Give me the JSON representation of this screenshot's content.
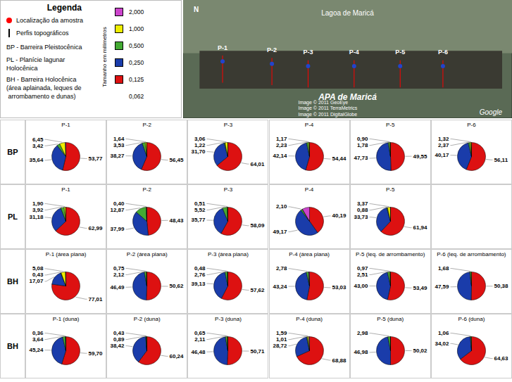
{
  "chart_data": [
    {
      "type": "map",
      "categories": [
        "P-1",
        "P-2",
        "P-3",
        "P-4",
        "P-5",
        "P-6"
      ],
      "annotations": [
        "Lagoa de Maricá",
        "APA de Maricá",
        "N",
        "Image © 2011 GeoEye\nImage © 2011 TerraMetrics",
        "Image © 2011 DigitalGlobe",
        "Google"
      ]
    },
    {
      "type": "legend",
      "title": "Legenda",
      "annotations": [
        "Localização da amostra",
        "Perfis topográficos",
        "BP - Barreira Pleistocênica",
        "PL - Planície lagunar\nHolocênica",
        "BH - Barreira Holocênica\n(área aplainada, leques de\n arrombamento e dunas)"
      ],
      "ylabel": "Tamanho em milímetros",
      "categories": [
        "2,000",
        "1,000",
        "0,500",
        "0,250",
        "0,125",
        "0,062"
      ],
      "colors": [
        "#cc44cc",
        "#eeee00",
        "#44aa33",
        "#1a3caa",
        "#dd1111",
        null
      ]
    },
    {
      "type": "pie",
      "ylabel": "BP",
      "title": "P-1",
      "data_labels": true,
      "values": [
        53.77,
        35.64,
        3.42,
        6.45,
        0.72
      ],
      "value_labels": [
        "53,77",
        "35,64",
        "3,42",
        "6,45",
        null
      ],
      "colors": [
        "#dd1111",
        "#1a3caa",
        "#44aa33",
        "#eeee00",
        "#cc44cc"
      ]
    },
    {
      "type": "pie",
      "title": "P-2",
      "data_labels": true,
      "values": [
        56.45,
        38.27,
        3.53,
        1.64,
        0.11
      ],
      "value_labels": [
        "56,45",
        "38,27",
        "3,53",
        "1,64",
        null
      ],
      "colors": [
        "#dd1111",
        "#1a3caa",
        "#44aa33",
        "#eeee00",
        "#cc44cc"
      ]
    },
    {
      "type": "pie",
      "title": "P-3",
      "data_labels": true,
      "values": [
        64.01,
        31.7,
        1.22,
        3.06,
        0.01
      ],
      "value_labels": [
        "64,01",
        "31,70",
        "1,22",
        "3,06",
        null
      ],
      "colors": [
        "#dd1111",
        "#1a3caa",
        "#44aa33",
        "#eeee00",
        "#cc44cc"
      ]
    },
    {
      "type": "pie",
      "title": "P-4",
      "data_labels": true,
      "values": [
        54.44,
        42.14,
        2.23,
        1.17,
        0.02
      ],
      "value_labels": [
        "54,44",
        "42,14",
        "2,23",
        "1,17",
        null
      ],
      "colors": [
        "#dd1111",
        "#1a3caa",
        "#44aa33",
        "#eeee00",
        "#cc44cc"
      ]
    },
    {
      "type": "pie",
      "title": "P-5",
      "data_labels": true,
      "values": [
        49.55,
        47.73,
        1.78,
        0.9,
        0.04
      ],
      "value_labels": [
        "49,55",
        "47,73",
        "1,78",
        "0,90",
        null
      ],
      "colors": [
        "#dd1111",
        "#1a3caa",
        "#44aa33",
        "#eeee00",
        "#cc44cc"
      ]
    },
    {
      "type": "pie",
      "title": "P-6",
      "data_labels": true,
      "values": [
        56.11,
        40.17,
        2.37,
        1.32,
        0.03
      ],
      "value_labels": [
        "56,11",
        "40,17",
        "2,37",
        "1,32",
        null
      ],
      "colors": [
        "#dd1111",
        "#1a3caa",
        "#44aa33",
        "#eeee00",
        "#cc44cc"
      ]
    },
    {
      "type": "pie",
      "ylabel": "PL",
      "title": "P-1",
      "data_labels": true,
      "values": [
        62.99,
        31.18,
        3.92,
        1.9,
        0.01
      ],
      "value_labels": [
        "62,99",
        "31,18",
        "3,92",
        "1,90",
        null
      ],
      "colors": [
        "#dd1111",
        "#1a3caa",
        "#44aa33",
        "#eeee00",
        "#cc44cc"
      ]
    },
    {
      "type": "pie",
      "title": "P-2",
      "data_labels": true,
      "values": [
        48.43,
        37.99,
        12.87,
        0.4,
        0.31
      ],
      "value_labels": [
        "48,43",
        "37,99",
        "12,87",
        "0,40",
        null
      ],
      "colors": [
        "#dd1111",
        "#1a3caa",
        "#44aa33",
        "#eeee00",
        "#cc44cc"
      ]
    },
    {
      "type": "pie",
      "title": "P-3",
      "data_labels": true,
      "values": [
        58.09,
        35.77,
        5.52,
        0.51,
        0.11
      ],
      "value_labels": [
        "58,09",
        "35,77",
        "5,52",
        "0,51",
        null
      ],
      "colors": [
        "#dd1111",
        "#1a3caa",
        "#44aa33",
        "#eeee00",
        "#cc44cc"
      ]
    },
    {
      "type": "pie",
      "title": "P-4",
      "data_labels": true,
      "values": [
        40.19,
        49.17,
        2.1,
        0.04,
        8.5
      ],
      "value_labels": [
        "40,19",
        "49,17",
        "2,10",
        null,
        null
      ],
      "colors": [
        "#dd1111",
        "#1a3caa",
        "#44aa33",
        "#eeee00",
        "#cc44cc"
      ]
    },
    {
      "type": "pie",
      "title": "P-5",
      "data_labels": true,
      "values": [
        61.94,
        33.73,
        0.88,
        3.37,
        0.08
      ],
      "value_labels": [
        "61,94",
        "33,73",
        "0,88",
        "3,37",
        null
      ],
      "colors": [
        "#dd1111",
        "#1a3caa",
        "#44aa33",
        "#eeee00",
        "#cc44cc"
      ]
    },
    {
      "type": "pie",
      "ylabel": "BH",
      "title": "P-1 (área plana)",
      "data_labels": true,
      "values": [
        77.01,
        17.07,
        0.43,
        5.08,
        0.41
      ],
      "value_labels": [
        "77,01",
        "17,07",
        "0,43",
        "5,08",
        null
      ],
      "colors": [
        "#dd1111",
        "#1a3caa",
        "#44aa33",
        "#eeee00",
        "#cc44cc"
      ]
    },
    {
      "type": "pie",
      "title": "P-2 (área plana)",
      "data_labels": true,
      "values": [
        50.62,
        46.49,
        2.12,
        0.75,
        0.02
      ],
      "value_labels": [
        "50,62",
        "46,49",
        "2,12",
        "0,75",
        null
      ],
      "colors": [
        "#dd1111",
        "#1a3caa",
        "#44aa33",
        "#eeee00",
        "#cc44cc"
      ]
    },
    {
      "type": "pie",
      "title": "P-3 (área plana)",
      "data_labels": true,
      "values": [
        57.62,
        39.13,
        2.76,
        0.48,
        0.01
      ],
      "value_labels": [
        "57,62",
        "39,13",
        "2,76",
        "0,48",
        null
      ],
      "colors": [
        "#dd1111",
        "#1a3caa",
        "#44aa33",
        "#eeee00",
        "#cc44cc"
      ]
    },
    {
      "type": "pie",
      "title": "P-4 (área plana)",
      "data_labels": true,
      "values": [
        53.03,
        43.24,
        2.78,
        0.11,
        0.84
      ],
      "value_labels": [
        "53,03",
        "43,24",
        "2,78",
        null,
        null
      ],
      "colors": [
        "#dd1111",
        "#1a3caa",
        "#44aa33",
        "#eeee00",
        "#cc44cc"
      ]
    },
    {
      "type": "pie",
      "title": "P-5 (leq. de arrombamento)",
      "data_labels": true,
      "values": [
        53.49,
        43.0,
        2.51,
        0.97,
        0.03
      ],
      "value_labels": [
        "53,49",
        "43,00",
        "2,51",
        "0,97",
        null
      ],
      "colors": [
        "#dd1111",
        "#1a3caa",
        "#44aa33",
        "#eeee00",
        "#cc44cc"
      ]
    },
    {
      "type": "pie",
      "title": "P-6 (leq. de arrombamento)",
      "data_labels": true,
      "values": [
        50.38,
        47.59,
        1.68,
        0.35,
        0.0
      ],
      "value_labels": [
        "50,38",
        "47,59",
        "1,68",
        null,
        null
      ],
      "colors": [
        "#dd1111",
        "#1a3caa",
        "#44aa33",
        "#eeee00",
        "#cc44cc"
      ]
    },
    {
      "type": "pie",
      "ylabel": "BH",
      "title": "P-1 (duna)",
      "data_labels": true,
      "values": [
        59.7,
        45.24,
        3.64,
        0.36,
        0.06
      ],
      "value_labels": [
        "59,70",
        "45,24",
        "3,64",
        "0,36",
        null
      ],
      "colors": [
        "#dd1111",
        "#1a3caa",
        "#44aa33",
        "#eeee00",
        "#cc44cc"
      ]
    },
    {
      "type": "pie",
      "title": "P-2 (duna)",
      "data_labels": true,
      "values": [
        60.24,
        38.42,
        0.89,
        0.43,
        0.02
      ],
      "value_labels": [
        "60,24",
        "38,42",
        "0,89",
        "0,43",
        null
      ],
      "colors": [
        "#dd1111",
        "#1a3caa",
        "#44aa33",
        "#eeee00",
        "#cc44cc"
      ]
    },
    {
      "type": "pie",
      "title": "P-3 (duna)",
      "data_labels": true,
      "values": [
        50.71,
        46.48,
        2.11,
        0.65,
        0.05
      ],
      "value_labels": [
        "50,71",
        "46,48",
        "2,11",
        "0,65",
        null
      ],
      "colors": [
        "#dd1111",
        "#1a3caa",
        "#44aa33",
        "#eeee00",
        "#cc44cc"
      ]
    },
    {
      "type": "pie",
      "title": "P-4 (duna)",
      "data_labels": true,
      "values": [
        68.88,
        28.72,
        1.01,
        1.59,
        0.8
      ],
      "value_labels": [
        "68,88",
        "28,72",
        "1,01",
        "1,59",
        null
      ],
      "colors": [
        "#dd1111",
        "#1a3caa",
        "#44aa33",
        "#eeee00",
        "#cc44cc"
      ]
    },
    {
      "type": "pie",
      "title": "P-5 (duna)",
      "data_labels": true,
      "values": [
        50.02,
        46.98,
        2.98,
        0.03,
        0.01
      ],
      "value_labels": [
        "50,02",
        "46,98",
        "2,98",
        null,
        null
      ],
      "colors": [
        "#dd1111",
        "#1a3caa",
        "#44aa33",
        "#eeee00",
        "#cc44cc"
      ]
    },
    {
      "type": "pie",
      "title": "P-6 (duna)",
      "data_labels": true,
      "values": [
        64.63,
        34.02,
        1.06,
        0.29,
        0.0
      ],
      "value_labels": [
        "64,63",
        "34,02",
        "1,06",
        null,
        null
      ],
      "colors": [
        "#dd1111",
        "#1a3caa",
        "#44aa33",
        "#eeee00",
        "#cc44cc"
      ]
    }
  ]
}
